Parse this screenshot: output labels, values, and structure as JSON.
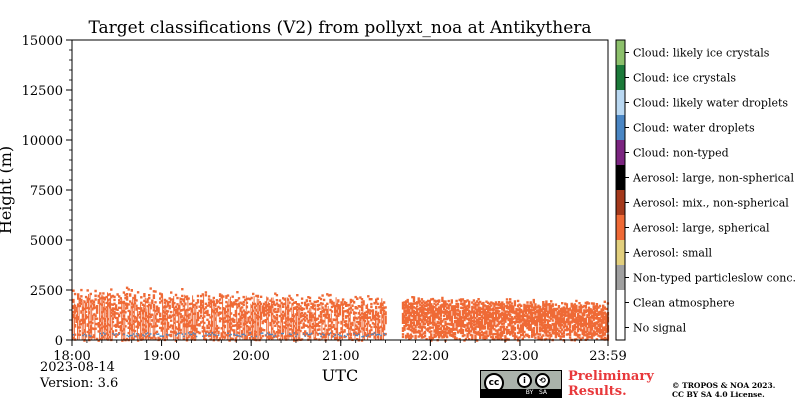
{
  "chart_data": {
    "type": "heatmap",
    "title": "Target classifications (V2) from pollyxt_noa at Antikythera",
    "xlabel": "UTC",
    "ylabel": "Height (m)",
    "x_ticks": [
      "18:00",
      "19:00",
      "20:00",
      "21:00",
      "22:00",
      "23:00",
      "23:59"
    ],
    "y_ticks": [
      "0",
      "2500",
      "5000",
      "7500",
      "10000",
      "12500",
      "15000"
    ],
    "ylim": [
      0,
      15000
    ],
    "x_range_hours": [
      18.0,
      23.983
    ],
    "data_gap_hours": [
      21.5,
      21.68
    ],
    "aerosol_layer_top_m": {
      "start": 2400,
      "end": 1700
    },
    "classes": [
      {
        "id": 0,
        "name": "No signal",
        "color": "#ffffff"
      },
      {
        "id": 1,
        "name": "Clean atmosphere",
        "color": "#ffffff"
      },
      {
        "id": 2,
        "name": "Non-typed particleslow conc.",
        "color": "#a0a0a0"
      },
      {
        "id": 3,
        "name": "Aerosol: small",
        "color": "#e2cf7d"
      },
      {
        "id": 4,
        "name": "Aerosol: large, spherical",
        "color": "#ef6a36"
      },
      {
        "id": 5,
        "name": "Aerosol: mix., non-spherical",
        "color": "#a4391b"
      },
      {
        "id": 6,
        "name": "Aerosol: large, non-spherical",
        "color": "#000000"
      },
      {
        "id": 7,
        "name": "Cloud: non-typed",
        "color": "#7b2580"
      },
      {
        "id": 8,
        "name": "Cloud: water droplets",
        "color": "#4a86c4"
      },
      {
        "id": 9,
        "name": "Cloud: likely water droplets",
        "color": "#b9d8f2"
      },
      {
        "id": 10,
        "name": "Cloud: ice crystals",
        "color": "#1c7a3a"
      },
      {
        "id": 11,
        "name": "Cloud: likely ice crystals",
        "color": "#8cc06b"
      }
    ],
    "dominant_classes": [
      "Aerosol: large, spherical",
      "Cloud: water droplets"
    ]
  },
  "footer": {
    "date": "2023-08-14",
    "version": "Version: 3.6",
    "preliminary": [
      "Preliminary",
      "Results."
    ],
    "copyright": [
      "© TROPOS & NOA 2023.",
      "CC BY SA 4.0 License."
    ],
    "license_badge": {
      "cc": "cc",
      "by": "BY",
      "sa": "SA"
    }
  }
}
